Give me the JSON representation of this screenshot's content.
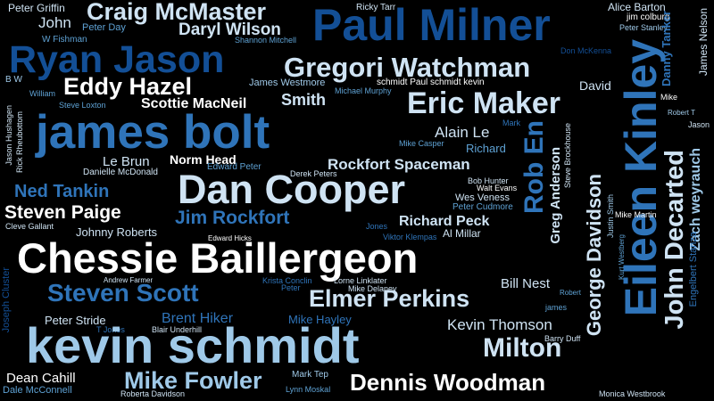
{
  "words": [
    "Peter Griffin",
    "Craig McMaster",
    "Paul Milner",
    "Ricky Tarr",
    "Alice Barton",
    "jim colburg",
    "John",
    "Peter Day",
    "Daryl Wilson",
    "W Fishman",
    "Shannon Mitchell",
    "Peter Stanley",
    "Danny Tanker",
    "James Nelson",
    "Ryan Jason",
    "Gregori Watchman",
    "Don McKenna",
    "Eddy Hazel",
    "B W",
    "James Westmore",
    "schmidt Paul schmidt kevin",
    "David",
    "William",
    "Michael Murphy",
    "Mike",
    "Scottie MacNeil",
    "Smith",
    "Steve Loxton",
    "Eric Maker",
    "james bolt",
    "Robert T",
    "Jason",
    "Jason Hushagen",
    "Rick Rheubottom",
    "Mark",
    "Alain Le",
    "Eileen Kinley",
    "Mike Casper",
    "Rob En",
    "Richard",
    "Steve Brockhouse",
    "Le Brun",
    "Norm Head",
    "Danielle McDonald",
    "Edward Peter",
    "Derek Peters",
    "Rockfort Spaceman",
    "Dan Cooper",
    "John Decarted",
    "Zach weyrauch",
    "Ned Tankin",
    "Bob Hunter",
    "Walt Evans",
    "Greg Anderson",
    "Wes Veness",
    "Peter Cudmore",
    "Steven Paige",
    "Jim Rockfort",
    "Justin Smith",
    "Mike Martin",
    "Cleve Gallant",
    "Jones",
    "Richard Peck",
    "Johnny Roberts",
    "Viktor Klempas",
    "Al Millar",
    "George Davidson",
    "Edward Hicks",
    "Kurt Westberg",
    "Chessie Baillergeon",
    "Engelbert Stanza",
    "Andrew Farmer",
    "Krista Conclin",
    "Lorne Linklater",
    "Bill Nest",
    "Peter",
    "Mike Delaney",
    "Robert",
    "Steven Scott",
    "Elmer Perkins",
    "Joseph Cluster",
    "james",
    "Peter Stride",
    "Brent Hiker",
    "Mike Hayley",
    "Kevin Thomson",
    "T Jones",
    "Blair Underhill",
    "kevin schmidt",
    "Barry Duff",
    "Milton",
    "Dean Cahill",
    "Mark Tep",
    "Dale McConnell",
    "Mike Fowler",
    "Lynn Moskal",
    "Dennis Woodman",
    "Roberta Davidson",
    "Monica Westbrook"
  ]
}
